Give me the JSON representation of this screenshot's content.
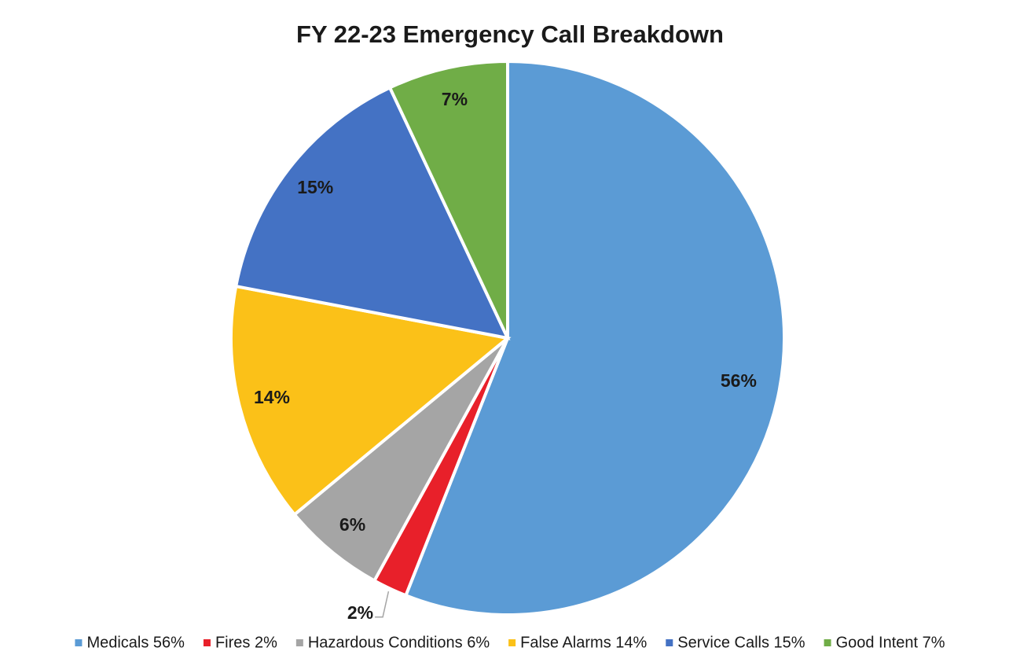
{
  "chart_data": {
    "type": "pie",
    "title": "FY 22-23  Emergency Call Breakdown",
    "categories": [
      "Medicals 56%",
      "Fires 2%",
      "Hazardous Conditions 6%",
      "False Alarms 14%",
      "Service Calls 15%",
      "Good Intent 7%"
    ],
    "values": [
      56,
      2,
      6,
      14,
      15,
      7
    ],
    "value_labels": [
      "56%",
      "2%",
      "6%",
      "14%",
      "15%",
      "7%"
    ],
    "colors": [
      "#5b9bd5",
      "#e8202a",
      "#a5a5a5",
      "#fbc118",
      "#4472c4",
      "#70ad47"
    ],
    "legend": "bottom"
  }
}
